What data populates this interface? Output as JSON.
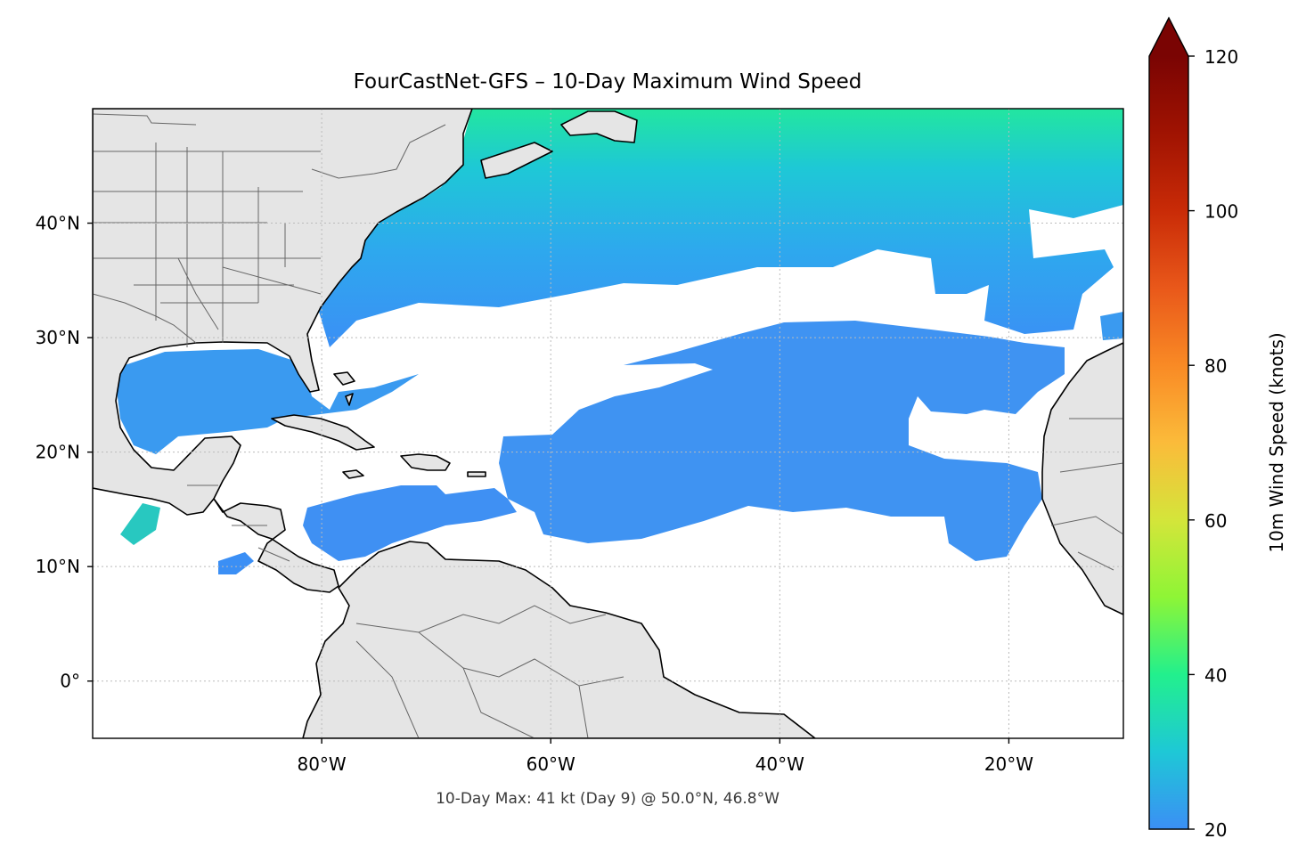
{
  "title": "FourCastNet-GFS – 10-Day Maximum Wind Speed",
  "caption": "10-Day Max: 41 kt (Day 9) @ 50.0°N, 46.8°W",
  "map": {
    "extent_lon": [
      -100,
      -10
    ],
    "extent_lat": [
      -5,
      50
    ],
    "land_color": "#e5e5e5",
    "ocean_color": "#ffffff",
    "coast_color": "#000000",
    "border_color": "#666666",
    "gridlines": true
  },
  "axes": {
    "x_ticks": [
      {
        "lon": -80,
        "label": "80°W"
      },
      {
        "lon": -60,
        "label": "60°W"
      },
      {
        "lon": -40,
        "label": "40°W"
      },
      {
        "lon": -20,
        "label": "20°W"
      }
    ],
    "y_ticks": [
      {
        "lat": 40,
        "label": "40°N"
      },
      {
        "lat": 30,
        "label": "30°N"
      },
      {
        "lat": 20,
        "label": "20°N"
      },
      {
        "lat": 10,
        "label": "10°N"
      },
      {
        "lat": 0,
        "label": "0°"
      }
    ]
  },
  "colorbar": {
    "label": "10m Wind Speed (knots)",
    "min": 20,
    "max": 120,
    "extend": "max",
    "ticks": [
      {
        "value": 120,
        "label": "120"
      },
      {
        "value": 100,
        "label": "100"
      },
      {
        "value": 80,
        "label": "80"
      },
      {
        "value": 60,
        "label": "60"
      },
      {
        "value": 40,
        "label": "40"
      },
      {
        "value": 20,
        "label": "20"
      }
    ],
    "stops": [
      {
        "value": 20,
        "color": "#3b8ff5"
      },
      {
        "value": 30,
        "color": "#1ec8d6"
      },
      {
        "value": 40,
        "color": "#22f08d"
      },
      {
        "value": 50,
        "color": "#8ef536"
      },
      {
        "value": 60,
        "color": "#d4e53a"
      },
      {
        "value": 70,
        "color": "#fbbb3a"
      },
      {
        "value": 80,
        "color": "#f98a25"
      },
      {
        "value": 90,
        "color": "#e9581a"
      },
      {
        "value": 100,
        "color": "#c92b07"
      },
      {
        "value": 110,
        "color": "#a01302"
      },
      {
        "value": 120,
        "color": "#7a0403"
      }
    ],
    "extend_color": "#7a0403"
  },
  "max_point": {
    "speed_kt": 41,
    "day": 9,
    "lat": 50.0,
    "lon": -46.8
  }
}
